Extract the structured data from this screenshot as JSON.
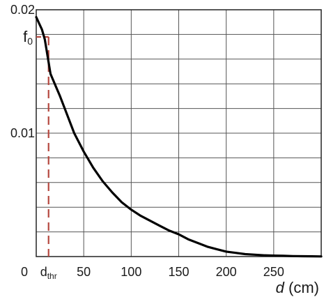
{
  "chart_data": {
    "type": "line",
    "title": "",
    "xlabel": "d (cm)",
    "xlabel_var": "d",
    "xlabel_unit": " (cm)",
    "ylabel": "",
    "xlim": [
      0,
      300
    ],
    "ylim": [
      0,
      0.02
    ],
    "grid": true,
    "x_ticks": [
      {
        "value": 0,
        "label": "0"
      },
      {
        "value": 50,
        "label": "50"
      },
      {
        "value": 100,
        "label": "100"
      },
      {
        "value": 150,
        "label": "150"
      },
      {
        "value": 200,
        "label": "200"
      },
      {
        "value": 250,
        "label": "250"
      }
    ],
    "y_ticks": [
      {
        "value": 0.01,
        "label": "0.01"
      },
      {
        "value": 0.02,
        "label": "0.02"
      }
    ],
    "x_gridlines": [
      0,
      50,
      100,
      150,
      200,
      250,
      300
    ],
    "y_gridlines": [
      0,
      0.002,
      0.004,
      0.006,
      0.008,
      0.01,
      0.012,
      0.014,
      0.016,
      0.018,
      0.02
    ],
    "annotations": {
      "threshold": {
        "label_main": "d",
        "label_sub": "thr",
        "x": 13,
        "f0": {
          "label_main": "f",
          "label_sub": "0",
          "value": 0.0178
        }
      }
    },
    "series": [
      {
        "x": [
          0,
          3,
          6,
          9,
          12,
          15,
          20,
          25,
          30,
          40,
          50,
          60,
          70,
          80,
          90,
          100,
          110,
          120,
          130,
          140,
          150,
          160,
          170,
          180,
          190,
          200,
          210,
          220,
          230,
          240,
          250,
          260,
          270,
          280,
          290,
          300
        ],
        "y": [
          0.0194,
          0.0189,
          0.0184,
          0.0176,
          0.0162,
          0.0148,
          0.0139,
          0.013,
          0.012,
          0.01,
          0.0085,
          0.0072,
          0.0061,
          0.0052,
          0.0044,
          0.0038,
          0.0033,
          0.0029,
          0.0025,
          0.0021,
          0.0018,
          0.0014,
          0.0011,
          0.0008,
          0.0006,
          0.0004,
          0.0003,
          0.0002,
          0.00015,
          0.0001,
          8e-05,
          6e-05,
          4e-05,
          3e-05,
          2e-05,
          1e-05
        ]
      }
    ],
    "colors": {
      "line": "#000000",
      "grid": "#555555",
      "threshold": "#b5473f"
    }
  }
}
